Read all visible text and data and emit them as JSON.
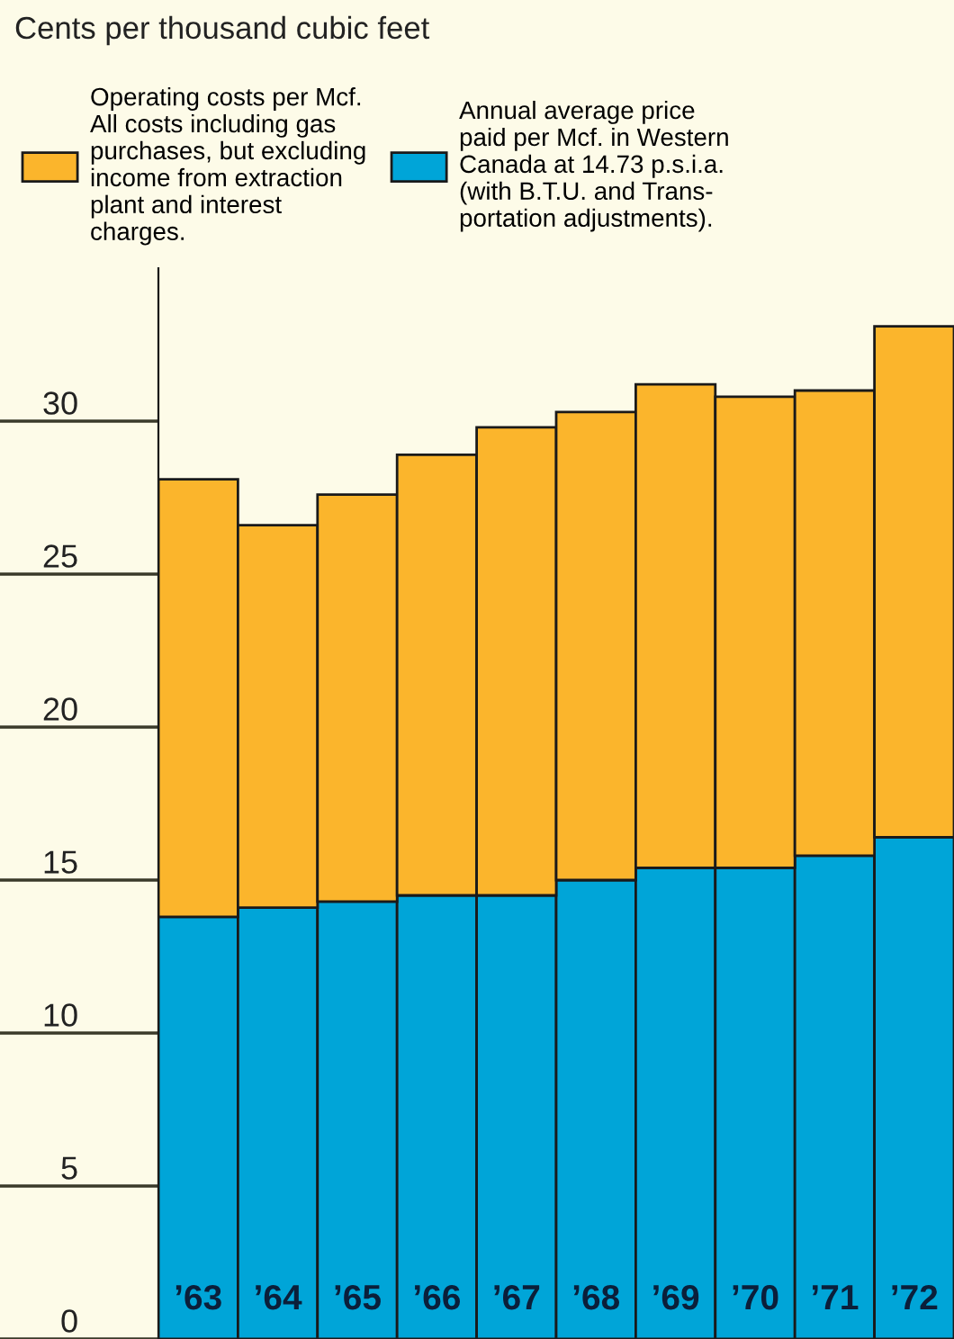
{
  "chart_data": {
    "type": "bar",
    "annotations": [
      "Cents per thousand cubic feet"
    ],
    "categories": [
      "’63",
      "’64",
      "’65",
      "’66",
      "’67",
      "’68",
      "’69",
      "’70",
      "’71",
      "’72"
    ],
    "stacked": true,
    "series": [
      {
        "name": "Annual average price\npaid per Mcf. in Western\nCanada at 14.73 p.s.i.a.\n(with B.T.U. and Trans-\nportation adjustments).",
        "color": "#00a5d8",
        "values": [
          13.8,
          14.1,
          14.3,
          14.5,
          14.5,
          15.0,
          15.4,
          15.4,
          15.8,
          16.4
        ]
      },
      {
        "name": "Operating costs per Mcf.\nAll costs including gas\npurchases, but excluding\nincome from extraction\nplant and interest\ncharges.",
        "color": "#fbb52c",
        "values": [
          14.3,
          12.5,
          13.3,
          14.4,
          15.3,
          15.3,
          15.8,
          15.4,
          15.2,
          16.7
        ]
      }
    ],
    "ylim": [
      0,
      35
    ],
    "yticks": [
      0,
      5,
      10,
      15,
      20,
      25,
      30
    ],
    "grid": false,
    "legend": "top"
  }
}
